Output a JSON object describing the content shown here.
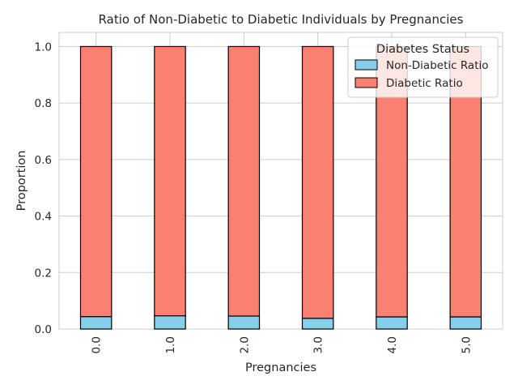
{
  "chart_data": {
    "type": "bar",
    "stacked": true,
    "title": "Ratio of Non-Diabetic to Diabetic Individuals by Pregnancies",
    "xlabel": "Pregnancies",
    "ylabel": "Proportion",
    "categories": [
      "0.0",
      "1.0",
      "2.0",
      "3.0",
      "4.0",
      "5.0"
    ],
    "series": [
      {
        "name": "Non-Diabetic Ratio",
        "color": "#87ceeb",
        "values": [
          0.044,
          0.047,
          0.046,
          0.038,
          0.043,
          0.043
        ]
      },
      {
        "name": "Diabetic Ratio",
        "color": "#fa8072",
        "values": [
          0.956,
          0.953,
          0.954,
          0.962,
          0.957,
          0.957
        ]
      }
    ],
    "ylim": [
      0,
      1.05
    ],
    "yticks": [
      0.0,
      0.2,
      0.4,
      0.6,
      0.8,
      1.0
    ],
    "ytick_labels": [
      "0.0",
      "0.2",
      "0.4",
      "0.6",
      "0.8",
      "1.0"
    ],
    "grid": true,
    "legend": {
      "title": "Diabetes Status",
      "position": "top-right"
    },
    "bar_edge_color": "#000000"
  }
}
